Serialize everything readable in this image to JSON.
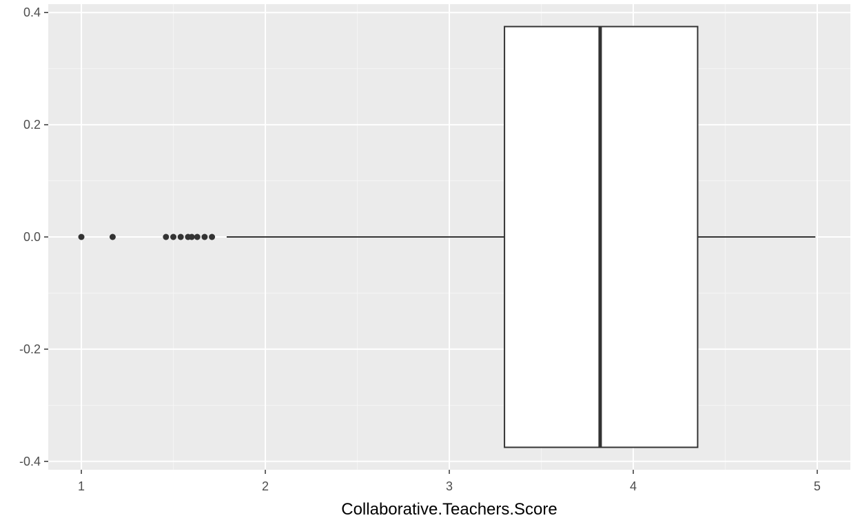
{
  "chart_data": {
    "type": "boxplot",
    "orientation": "horizontal",
    "title": "",
    "xlabel": "Collaborative.Teachers.Score",
    "ylabel": "",
    "xlim": [
      0.82,
      5.18
    ],
    "ylim": [
      -0.415,
      0.415
    ],
    "x_ticks": [
      1,
      2,
      3,
      4,
      5
    ],
    "x_tick_labels": [
      "1",
      "2",
      "3",
      "4",
      "5"
    ],
    "y_ticks": [
      -0.4,
      -0.2,
      0.0,
      0.2,
      0.4
    ],
    "y_tick_labels": [
      "-0.4",
      "-0.2",
      "0.0",
      "0.2",
      "0.4"
    ],
    "grid": true,
    "box": {
      "y": 0.0,
      "half_width": 0.375,
      "whisker_low": 1.79,
      "q1": 3.3,
      "median": 3.82,
      "q3": 4.35,
      "whisker_high": 4.99
    },
    "outliers": [
      1.0,
      1.17,
      1.46,
      1.5,
      1.54,
      1.58,
      1.6,
      1.63,
      1.67,
      1.71
    ],
    "colors": {
      "panel_background": "#ebebeb",
      "grid_major": "#ffffff",
      "grid_minor": "#f5f5f5",
      "box_fill": "#ffffff",
      "box_line": "#333333",
      "outlier": "#333333"
    }
  }
}
